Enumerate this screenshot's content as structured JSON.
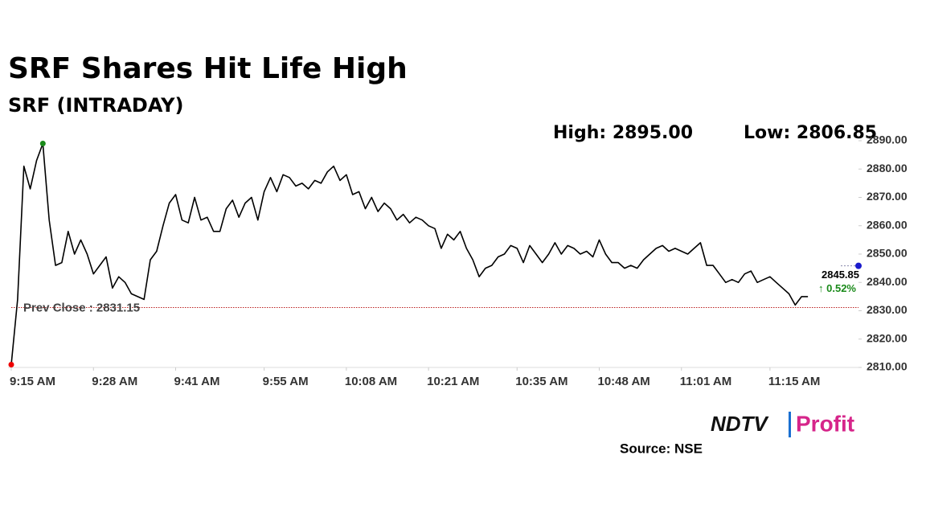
{
  "chart_data": {
    "type": "line",
    "title": "SRF Shares Hit Life High",
    "subtitle": "SRF (INTRADAY)",
    "high_label": "High: 2895.00",
    "low_label": "Low: 2806.85",
    "prev_close": {
      "value": 2831.15,
      "label": "Prev Close : 2831.15"
    },
    "last_price": 2845.85,
    "change_label": "↑ 0.52%",
    "source": "Source: NSE",
    "logo": {
      "left": "NDTV",
      "right": "Profit"
    },
    "color": "#000000",
    "x": [
      "9:15 AM",
      "9:16 AM",
      "9:17 AM",
      "9:18 AM",
      "9:19 AM",
      "9:20 AM",
      "9:21 AM",
      "9:22 AM",
      "9:23 AM",
      "9:24 AM",
      "9:25 AM",
      "9:26 AM",
      "9:27 AM",
      "9:28 AM",
      "9:29 AM",
      "9:30 AM",
      "9:31 AM",
      "9:32 AM",
      "9:33 AM",
      "9:34 AM",
      "9:35 AM",
      "9:36 AM",
      "9:37 AM",
      "9:38 AM",
      "9:39 AM",
      "9:40 AM",
      "9:41 AM",
      "9:42 AM",
      "9:43 AM",
      "9:44 AM",
      "9:45 AM",
      "9:46 AM",
      "9:47 AM",
      "9:48 AM",
      "9:49 AM",
      "9:50 AM",
      "9:51 AM",
      "9:52 AM",
      "9:53 AM",
      "9:54 AM",
      "9:55 AM",
      "9:56 AM",
      "9:57 AM",
      "9:58 AM",
      "9:59 AM",
      "10:00 AM",
      "10:01 AM",
      "10:02 AM",
      "10:03 AM",
      "10:04 AM",
      "10:05 AM",
      "10:06 AM",
      "10:07 AM",
      "10:08 AM",
      "10:09 AM",
      "10:10 AM",
      "10:11 AM",
      "10:12 AM",
      "10:13 AM",
      "10:14 AM",
      "10:15 AM",
      "10:16 AM",
      "10:17 AM",
      "10:18 AM",
      "10:19 AM",
      "10:20 AM",
      "10:21 AM",
      "10:22 AM",
      "10:23 AM",
      "10:24 AM",
      "10:25 AM",
      "10:26 AM",
      "10:27 AM",
      "10:28 AM",
      "10:29 AM",
      "10:30 AM",
      "10:31 AM",
      "10:32 AM",
      "10:33 AM",
      "10:34 AM",
      "10:35 AM",
      "10:36 AM",
      "10:37 AM",
      "10:38 AM",
      "10:39 AM",
      "10:40 AM",
      "10:41 AM",
      "10:42 AM",
      "10:43 AM",
      "10:44 AM",
      "10:45 AM",
      "10:46 AM",
      "10:47 AM",
      "10:48 AM",
      "10:49 AM",
      "10:50 AM",
      "10:51 AM",
      "10:52 AM",
      "10:53 AM",
      "10:54 AM",
      "10:55 AM",
      "10:56 AM",
      "10:57 AM",
      "10:58 AM",
      "10:59 AM",
      "11:00 AM",
      "11:01 AM",
      "11:02 AM",
      "11:03 AM",
      "11:04 AM",
      "11:05 AM",
      "11:06 AM",
      "11:07 AM",
      "11:08 AM",
      "11:09 AM",
      "11:10 AM",
      "11:11 AM",
      "11:12 AM",
      "11:13 AM",
      "11:14 AM",
      "11:15 AM",
      "11:16 AM",
      "11:17 AM",
      "11:18 AM",
      "11:19 AM",
      "11:20 AM",
      "11:21 AM"
    ],
    "values": [
      2811,
      2834,
      2881,
      2873,
      2883,
      2889,
      2862,
      2846,
      2847,
      2858,
      2850,
      2855,
      2850,
      2843,
      2846,
      2849,
      2838,
      2842,
      2840,
      2836,
      2835,
      2834,
      2848,
      2851,
      2860,
      2868,
      2871,
      2862,
      2861,
      2870,
      2862,
      2863,
      2858,
      2858,
      2866,
      2869,
      2863,
      2868,
      2870,
      2862,
      2872,
      2877,
      2872,
      2878,
      2877,
      2874,
      2875,
      2873,
      2876,
      2875,
      2879,
      2881,
      2876,
      2878,
      2871,
      2872,
      2866,
      2870,
      2865,
      2868,
      2866,
      2862,
      2864,
      2861,
      2863,
      2862,
      2860,
      2859,
      2852,
      2857,
      2855,
      2858,
      2852,
      2848,
      2842,
      2845,
      2846,
      2849,
      2850,
      2853,
      2852,
      2847,
      2853,
      2850,
      2847,
      2850,
      2854,
      2850,
      2853,
      2852,
      2850,
      2851,
      2849,
      2855,
      2850,
      2847,
      2847,
      2845,
      2846,
      2845,
      2848,
      2850,
      2852,
      2853,
      2851,
      2852,
      2851,
      2850,
      2852,
      2854,
      2846,
      2846,
      2843,
      2840,
      2841,
      2840,
      2843,
      2844,
      2840,
      2841,
      2842,
      2840,
      2838,
      2836,
      2832,
      2835,
      2835
    ],
    "xlim": [
      "9:15 AM",
      "11:29 AM"
    ],
    "xticks": [
      "9:15 AM",
      "9:28 AM",
      "9:41 AM",
      "9:55 AM",
      "10:08 AM",
      "10:21 AM",
      "10:35 AM",
      "10:48 AM",
      "11:01 AM",
      "11:15 AM"
    ],
    "ylim": [
      2810,
      2890
    ],
    "yticks": [
      {
        "value": 2810,
        "label": "2810.00"
      },
      {
        "value": 2820,
        "label": "2820.00"
      },
      {
        "value": 2830,
        "label": "2830.00"
      },
      {
        "value": 2840,
        "label": "2840.00"
      },
      {
        "value": 2850,
        "label": "2850.00"
      },
      {
        "value": 2860,
        "label": "2860.00"
      },
      {
        "value": 2870,
        "label": "2870.00"
      },
      {
        "value": 2880,
        "label": "2880.00"
      },
      {
        "value": 2890,
        "label": "2890.00"
      }
    ]
  }
}
